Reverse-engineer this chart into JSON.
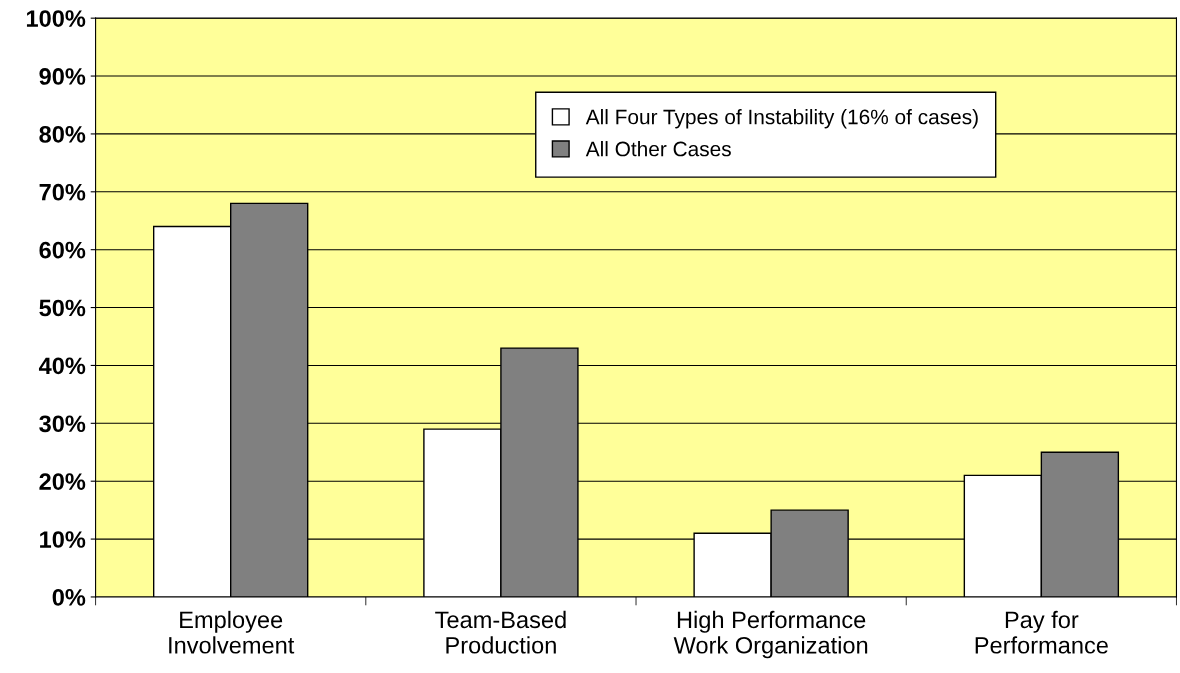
{
  "chart_data": {
    "type": "bar",
    "categories": [
      "Employee\nInvolvement",
      "Team-Based\nProduction",
      "High Performance\nWork Organization",
      "Pay for\nPerformance"
    ],
    "series": [
      {
        "name": "All Four Types of Instability (16% of cases)",
        "color": "#ffffff",
        "values": [
          64,
          29,
          11,
          21
        ]
      },
      {
        "name": "All Other Cases",
        "color": "#808080",
        "values": [
          68,
          43,
          15,
          25
        ]
      }
    ],
    "ylim": [
      0,
      100
    ],
    "yticks": [
      {
        "value": 0,
        "label": "0%"
      },
      {
        "value": 10,
        "label": "10%"
      },
      {
        "value": 20,
        "label": "20%"
      },
      {
        "value": 30,
        "label": "30%"
      },
      {
        "value": 40,
        "label": "40%"
      },
      {
        "value": 50,
        "label": "50%"
      },
      {
        "value": 60,
        "label": "60%"
      },
      {
        "value": 70,
        "label": "70%"
      },
      {
        "value": 80,
        "label": "80%"
      },
      {
        "value": 90,
        "label": "90%"
      },
      {
        "value": 100,
        "label": "100%"
      }
    ],
    "grid": "y",
    "legend": "top"
  }
}
